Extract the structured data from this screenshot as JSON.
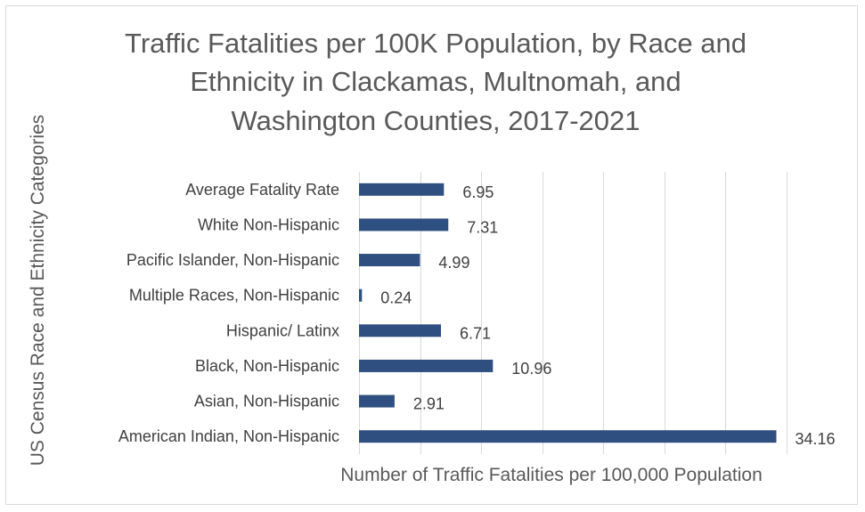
{
  "chart_data": {
    "type": "bar",
    "orientation": "horizontal",
    "title_lines": [
      "Traffic Fatalities per 100K Population, by Race and",
      "Ethnicity in Clackamas, Multnomah, and",
      "Washington Counties, 2017-2021"
    ],
    "xlabel": "Number of Traffic Fatalities per 100,000 Population",
    "ylabel": "US Census Race and Ethnicity Categories",
    "categories": [
      "Average Fatality Rate",
      "White Non-Hispanic",
      "Pacific Islander, Non-Hispanic",
      "Multiple Races, Non-Hispanic",
      "Hispanic/ Latinx",
      "Black, Non-Hispanic",
      "Asian, Non-Hispanic",
      "American Indian, Non-Hispanic"
    ],
    "values": [
      6.95,
      7.31,
      4.99,
      0.24,
      6.71,
      10.96,
      2.91,
      34.16
    ],
    "value_labels": [
      "6.95",
      "7.31",
      "4.99",
      "0.24",
      "6.71",
      "10.96",
      "2.91",
      "34.16"
    ],
    "xlim": [
      0,
      35
    ],
    "grid": true,
    "legend": "none",
    "bar_color": "#2e4f7f"
  }
}
